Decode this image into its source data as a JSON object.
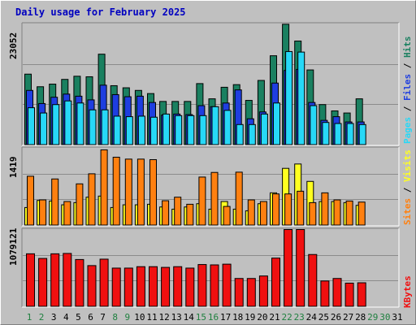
{
  "colors": {
    "hits": "#1a8060",
    "files": "#1e3ee0",
    "pages": "#27d8f7",
    "visits": "#ffff20",
    "sites": "#ff8010",
    "kbytes": "#f01010",
    "title": "#0000c0",
    "weekend_day": "#208040",
    "future_day": "#208040"
  },
  "chart_data": {
    "type": "bar",
    "title": "Daily usage for February 2025",
    "x": [
      1,
      2,
      3,
      4,
      5,
      6,
      7,
      8,
      9,
      10,
      11,
      12,
      13,
      14,
      15,
      16,
      17,
      18,
      19,
      20,
      21,
      22,
      23,
      24,
      25,
      26,
      27,
      28,
      29,
      30,
      31
    ],
    "day_labels": [
      "1",
      "2",
      "3",
      "4",
      "5",
      "6",
      "7",
      "8",
      "9",
      "10",
      "11",
      "12",
      "13",
      "14",
      "15",
      "16",
      "17",
      "18",
      "19",
      "20",
      "21",
      "22",
      "23",
      "24",
      "25",
      "26",
      "27",
      "28",
      "29",
      "30",
      "31"
    ],
    "weekend_days": [
      1,
      2,
      8,
      9,
      15,
      16,
      22,
      23,
      29,
      30
    ],
    "panels": [
      {
        "name": "hits-files-pages",
        "ymax_label": "23052",
        "ymax": 23052,
        "legend": [
          "Pages",
          "Files",
          "Hits"
        ],
        "series": [
          {
            "name": "Hits",
            "values": [
              13500,
              11100,
              11600,
              12500,
              13100,
              13000,
              17300,
              11300,
              10900,
              10400,
              9800,
              8300,
              8300,
              8300,
              11700,
              8800,
              11000,
              11500,
              8500,
              12300,
              17000,
              23000,
              19800,
              14300,
              7700,
              6500,
              6100,
              8800,
              null,
              null,
              null
            ]
          },
          {
            "name": "Files",
            "values": [
              10400,
              7900,
              9100,
              9700,
              9300,
              8600,
              11400,
              9600,
              9200,
              9300,
              8100,
              5700,
              5900,
              5800,
              7500,
              7300,
              8000,
              10500,
              5000,
              6300,
              11800,
              14200,
              14400,
              8100,
              4700,
              5400,
              4400,
              4400,
              null,
              null,
              null
            ]
          },
          {
            "name": "Pages",
            "values": [
              7100,
              6100,
              7700,
              8400,
              8000,
              6700,
              6700,
              5500,
              5400,
              5500,
              5300,
              5900,
              5600,
              5600,
              5600,
              7300,
              6600,
              3900,
              3900,
              5900,
              8000,
              17800,
              17700,
              7500,
              4300,
              4100,
              4100,
              3900,
              null,
              null,
              null
            ]
          }
        ]
      },
      {
        "name": "visits-sites",
        "ymax_label": "1419",
        "ymax": 1419,
        "legend": [
          "Sites",
          "Visits"
        ],
        "series": [
          {
            "name": "Visits",
            "values": [
              330,
              460,
              450,
              380,
              420,
              520,
              540,
              330,
              380,
              380,
              390,
              340,
              300,
              340,
              400,
              300,
              440,
              300,
              270,
              400,
              600,
              1050,
              1130,
              810,
              440,
              440,
              420,
              370,
              null,
              null,
              null
            ]
          },
          {
            "name": "Sites",
            "values": [
              905,
              470,
              855,
              440,
              765,
              950,
              1390,
              1255,
              1220,
              1220,
              1210,
              455,
              520,
              390,
              890,
              975,
              350,
              980,
              470,
              440,
              580,
              580,
              630,
              420,
              600,
              470,
              450,
              430,
              null,
              null,
              null
            ]
          }
        ]
      },
      {
        "name": "kbytes",
        "ymax_label": "1079121",
        "ymax": 1079121,
        "legend": [
          "KBytes"
        ],
        "series": [
          {
            "name": "KBytes",
            "values": [
              740000,
              675000,
              740000,
              745000,
              660000,
              575000,
              665000,
              540000,
              540000,
              560000,
              560000,
              550000,
              560000,
              540000,
              590000,
              585000,
              595000,
              395000,
              395000,
              430000,
              680000,
              1079000,
              1079000,
              730000,
              360000,
              395000,
              330000,
              335000,
              null,
              null,
              null
            ]
          }
        ]
      }
    ]
  }
}
